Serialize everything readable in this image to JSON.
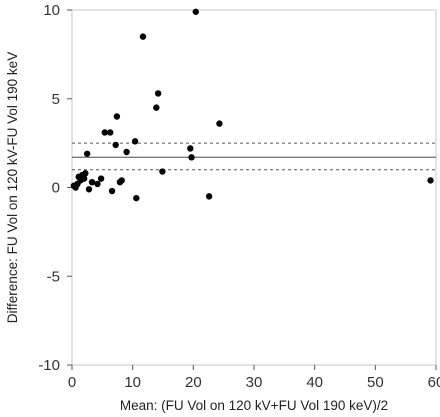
{
  "chart_data": {
    "type": "scatter",
    "title": "",
    "xlabel": "Mean: (FU Vol on 120 kV+FU Vol 190 keV)/2",
    "ylabel": "Difference: FU Vol on 120 kV-FU Vol 190 keV",
    "xlim": [
      0,
      60
    ],
    "ylim": [
      -10,
      10
    ],
    "x_ticks": [
      0,
      10,
      20,
      30,
      40,
      50,
      60
    ],
    "y_ticks": [
      -10,
      -5,
      0,
      5,
      10
    ],
    "grid": false,
    "reference_lines": {
      "mean": 1.7,
      "upper_ci": 2.5,
      "lower_ci": 1.0
    },
    "points": [
      [
        0.3,
        0.1
      ],
      [
        0.6,
        0.0
      ],
      [
        0.9,
        0.2
      ],
      [
        1.1,
        0.6
      ],
      [
        1.4,
        0.4
      ],
      [
        1.7,
        0.7
      ],
      [
        2.0,
        0.5
      ],
      [
        2.2,
        0.8
      ],
      [
        2.5,
        1.9
      ],
      [
        2.8,
        -0.1
      ],
      [
        3.3,
        0.3
      ],
      [
        4.2,
        0.2
      ],
      [
        4.8,
        0.5
      ],
      [
        5.4,
        3.1
      ],
      [
        6.3,
        3.1
      ],
      [
        6.6,
        -0.2
      ],
      [
        7.2,
        2.4
      ],
      [
        7.4,
        4.0
      ],
      [
        7.9,
        0.3
      ],
      [
        8.2,
        0.4
      ],
      [
        9.0,
        2.0
      ],
      [
        10.4,
        2.6
      ],
      [
        10.6,
        -0.6
      ],
      [
        11.7,
        8.5
      ],
      [
        13.9,
        4.5
      ],
      [
        14.2,
        5.3
      ],
      [
        14.9,
        0.9
      ],
      [
        19.5,
        2.2
      ],
      [
        19.7,
        1.7
      ],
      [
        20.4,
        9.9
      ],
      [
        22.6,
        -0.5
      ],
      [
        24.3,
        3.6
      ],
      [
        59.1,
        0.4
      ]
    ]
  }
}
